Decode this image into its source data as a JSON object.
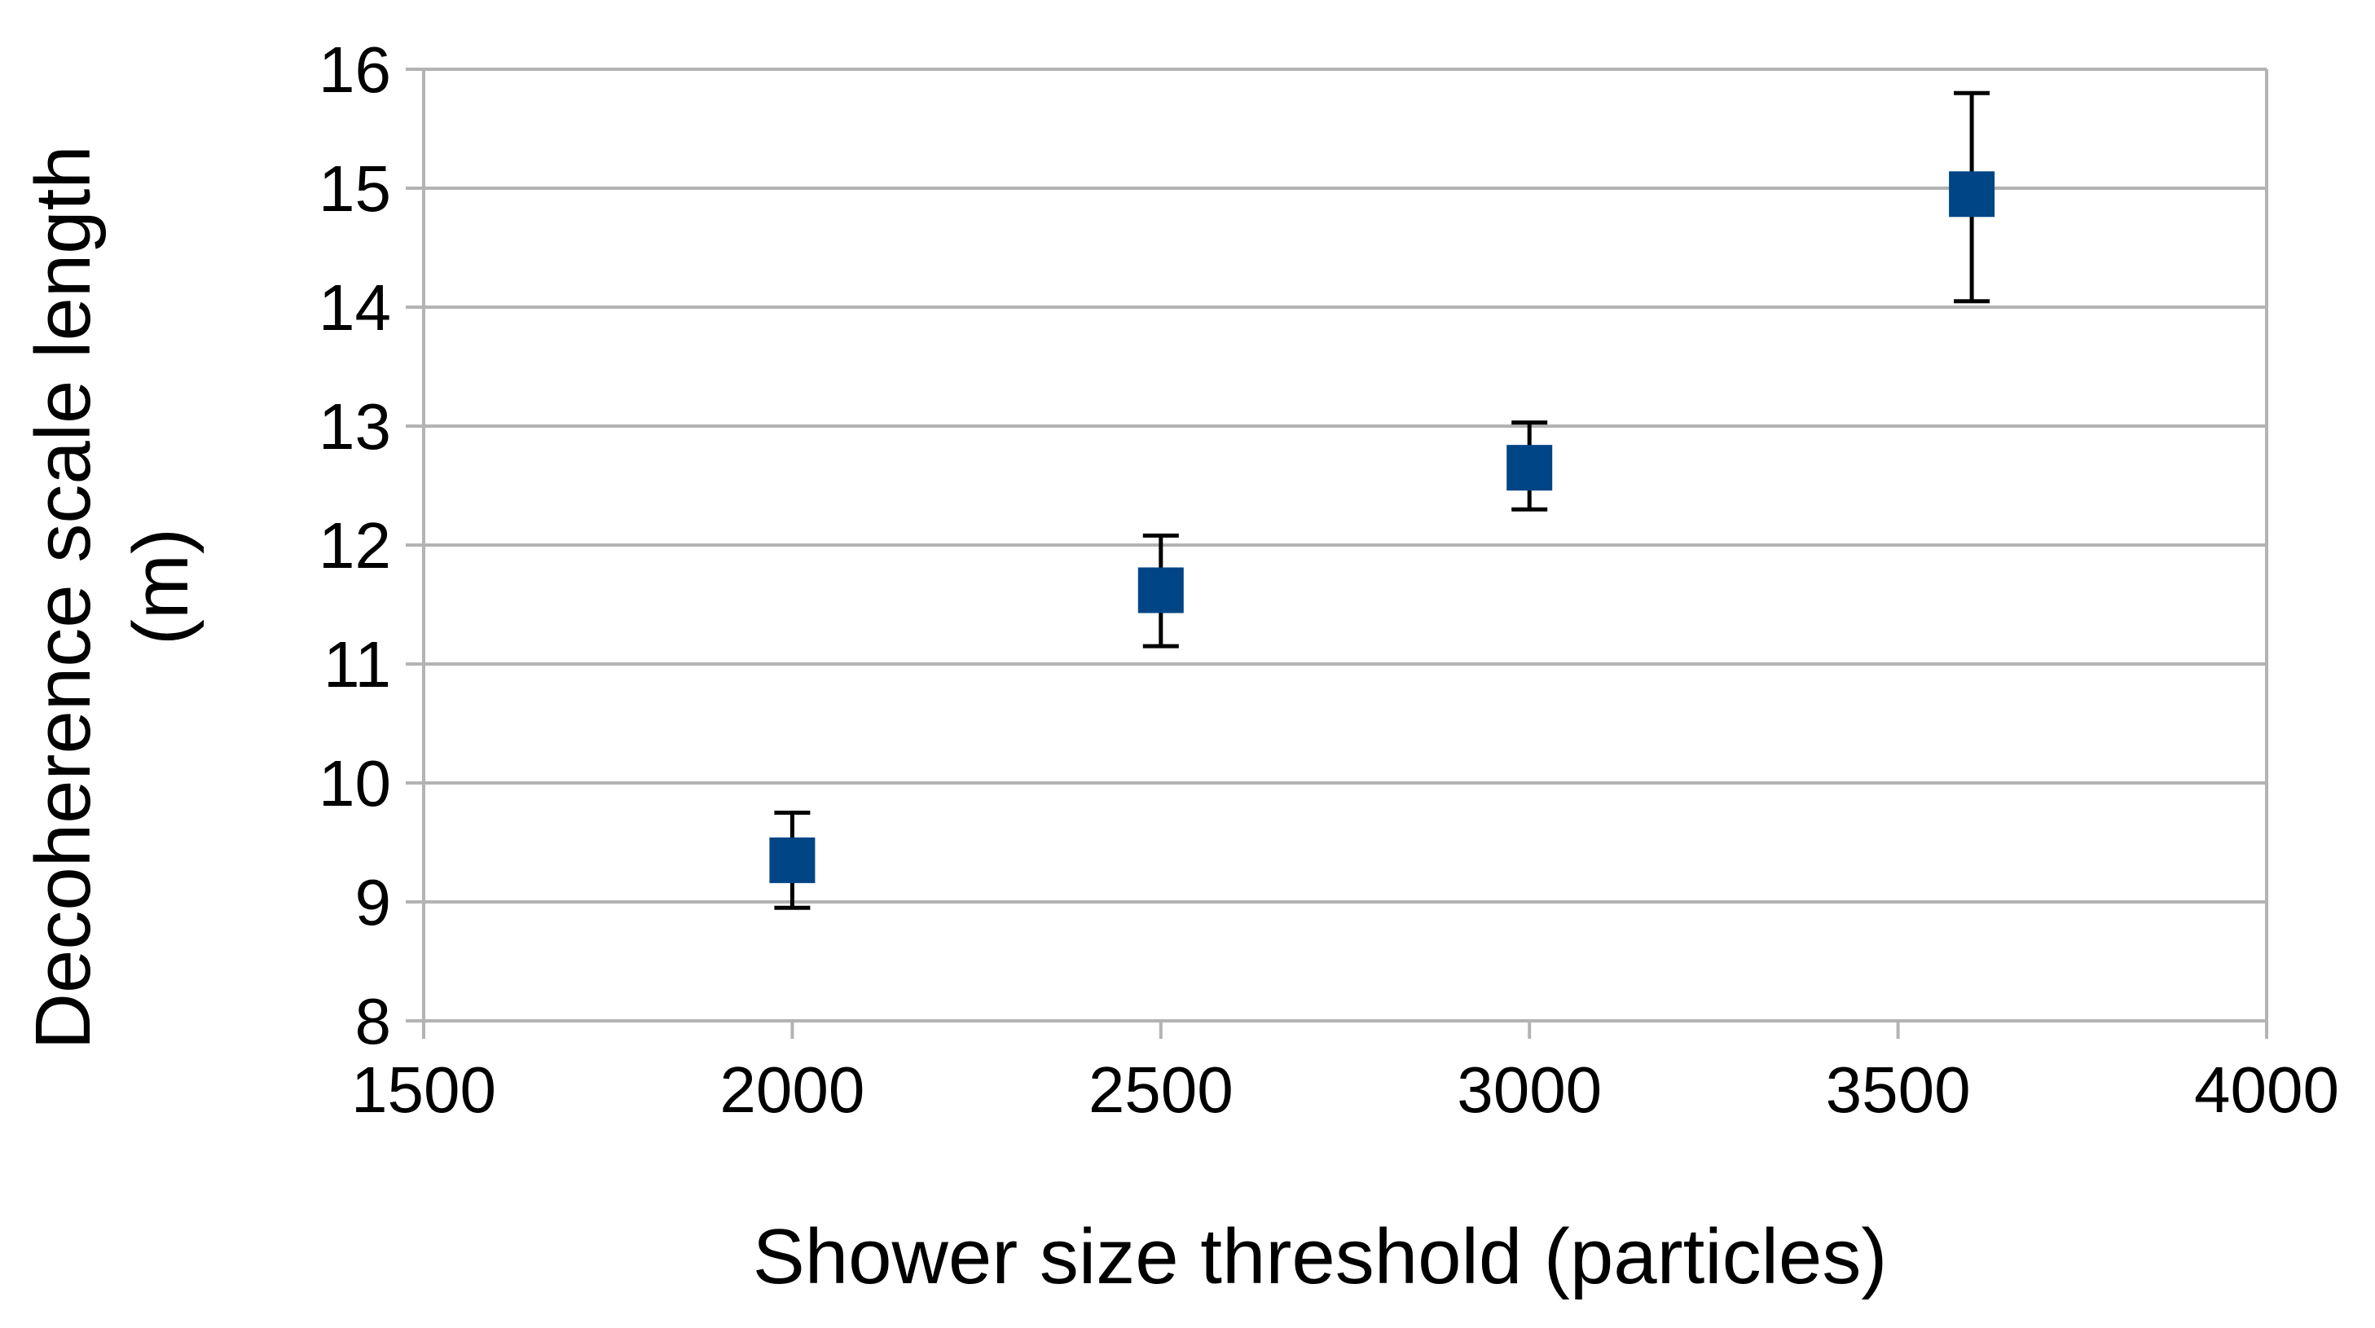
{
  "chart_data": {
    "type": "scatter",
    "title": "",
    "xlabel": "Shower size threshold (particles)",
    "ylabel_lines": [
      "Decoherence scale length",
      "(m)"
    ],
    "xlim": [
      1500,
      4000
    ],
    "ylim": [
      8,
      16
    ],
    "xticks": [
      1500,
      2000,
      2500,
      3000,
      3500,
      4000
    ],
    "yticks": [
      8,
      9,
      10,
      11,
      12,
      13,
      14,
      15,
      16
    ],
    "grid": "horizontal",
    "legend": "none",
    "series": [
      {
        "marker": "square",
        "color": "#004586",
        "points": [
          {
            "x": 2000,
            "y": 9.35,
            "err_low": 8.95,
            "err_high": 9.75
          },
          {
            "x": 2500,
            "y": 11.62,
            "err_low": 11.15,
            "err_high": 12.08
          },
          {
            "x": 3000,
            "y": 12.65,
            "err_low": 12.3,
            "err_high": 13.03
          },
          {
            "x": 3600,
            "y": 14.95,
            "err_low": 14.05,
            "err_high": 15.8
          }
        ]
      }
    ],
    "colors": {
      "grid": "#b3b3b3",
      "axis": "#b3b3b3",
      "errorbar": "#000000",
      "marker": "#004586"
    }
  }
}
